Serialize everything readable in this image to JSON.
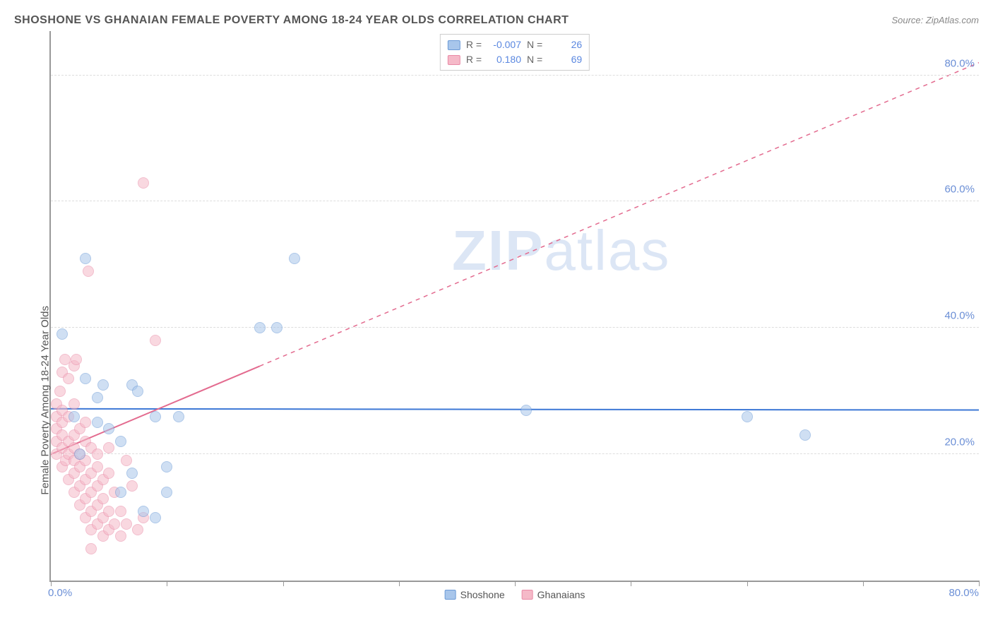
{
  "title": "SHOSHONE VS GHANAIAN FEMALE POVERTY AMONG 18-24 YEAR OLDS CORRELATION CHART",
  "source_label": "Source: ZipAtlas.com",
  "ylabel": "Female Poverty Among 18-24 Year Olds",
  "watermark_a": "ZIP",
  "watermark_b": "atlas",
  "chart": {
    "type": "scatter",
    "xlim": [
      0,
      80
    ],
    "ylim": [
      0,
      87
    ],
    "xtick_start": "0.0%",
    "xtick_end": "80.0%",
    "xtick_positions": [
      0,
      10,
      20,
      30,
      40,
      50,
      60,
      70,
      80
    ],
    "yticks": [
      {
        "v": 20,
        "label": "20.0%"
      },
      {
        "v": 40,
        "label": "40.0%"
      },
      {
        "v": 60,
        "label": "60.0%"
      },
      {
        "v": 80,
        "label": "80.0%"
      }
    ],
    "background_color": "#ffffff",
    "grid_color": "#dddddd",
    "axis_color": "#999999",
    "tick_label_color": "#6b8fd6",
    "marker_radius": 8,
    "marker_opacity": 0.55,
    "series": [
      {
        "name": "Shoshone",
        "fill": "#a8c6eb",
        "stroke": "#6b9ad6",
        "R": "-0.007",
        "N": "26",
        "trend": {
          "x1": 0,
          "y1": 27.2,
          "x2": 80,
          "y2": 27.0,
          "width": 2,
          "dashed": false,
          "color": "#3d78d6"
        },
        "points": [
          [
            1,
            39
          ],
          [
            2,
            26
          ],
          [
            2.5,
            20
          ],
          [
            3,
            32
          ],
          [
            3,
            51
          ],
          [
            4,
            25
          ],
          [
            4,
            29
          ],
          [
            4.5,
            31
          ],
          [
            6,
            14
          ],
          [
            6,
            22
          ],
          [
            7,
            17
          ],
          [
            7,
            31
          ],
          [
            7.5,
            30
          ],
          [
            9,
            10
          ],
          [
            9,
            26
          ],
          [
            10,
            18
          ],
          [
            10,
            14
          ],
          [
            11,
            26
          ],
          [
            18,
            40
          ],
          [
            19.5,
            40
          ],
          [
            21,
            51
          ],
          [
            41,
            27
          ],
          [
            60,
            26
          ],
          [
            65,
            23
          ],
          [
            5,
            24
          ],
          [
            8,
            11
          ]
        ]
      },
      {
        "name": "Ghanaians",
        "fill": "#f5b9c8",
        "stroke": "#e98aa6",
        "R": "0.180",
        "N": "69",
        "trend": {
          "x1": 0,
          "y1": 20,
          "x2": 80,
          "y2": 82,
          "width": 2,
          "dashed_after_x": 18,
          "color": "#e36b8f"
        },
        "points": [
          [
            0.5,
            20
          ],
          [
            0.5,
            22
          ],
          [
            0.5,
            24
          ],
          [
            0.5,
            26
          ],
          [
            0.5,
            28
          ],
          [
            0.8,
            30
          ],
          [
            1,
            18
          ],
          [
            1,
            21
          ],
          [
            1,
            23
          ],
          [
            1,
            25
          ],
          [
            1,
            27
          ],
          [
            1,
            33
          ],
          [
            1.2,
            35
          ],
          [
            1.3,
            19
          ],
          [
            1.5,
            16
          ],
          [
            1.5,
            20
          ],
          [
            1.5,
            22
          ],
          [
            1.5,
            26
          ],
          [
            1.5,
            32
          ],
          [
            2,
            14
          ],
          [
            2,
            17
          ],
          [
            2,
            19
          ],
          [
            2,
            21
          ],
          [
            2,
            23
          ],
          [
            2,
            28
          ],
          [
            2,
            34
          ],
          [
            2.2,
            35
          ],
          [
            2.5,
            12
          ],
          [
            2.5,
            15
          ],
          [
            2.5,
            18
          ],
          [
            2.5,
            20
          ],
          [
            2.5,
            24
          ],
          [
            3,
            10
          ],
          [
            3,
            13
          ],
          [
            3,
            16
          ],
          [
            3,
            19
          ],
          [
            3,
            22
          ],
          [
            3,
            25
          ],
          [
            3.2,
            49
          ],
          [
            3.5,
            8
          ],
          [
            3.5,
            11
          ],
          [
            3.5,
            14
          ],
          [
            3.5,
            17
          ],
          [
            3.5,
            21
          ],
          [
            4,
            9
          ],
          [
            4,
            12
          ],
          [
            4,
            15
          ],
          [
            4,
            18
          ],
          [
            4,
            20
          ],
          [
            4.5,
            7
          ],
          [
            4.5,
            10
          ],
          [
            4.5,
            13
          ],
          [
            4.5,
            16
          ],
          [
            5,
            8
          ],
          [
            5,
            11
          ],
          [
            5,
            17
          ],
          [
            5,
            21
          ],
          [
            5.5,
            9
          ],
          [
            5.5,
            14
          ],
          [
            6,
            7
          ],
          [
            6,
            11
          ],
          [
            6.5,
            9
          ],
          [
            7,
            15
          ],
          [
            7.5,
            8
          ],
          [
            8,
            63
          ],
          [
            8,
            10
          ],
          [
            9,
            38
          ],
          [
            3.5,
            5
          ],
          [
            6.5,
            19
          ]
        ]
      }
    ]
  },
  "legend_top_rlabel": "R =",
  "legend_top_nlabel": "N ="
}
